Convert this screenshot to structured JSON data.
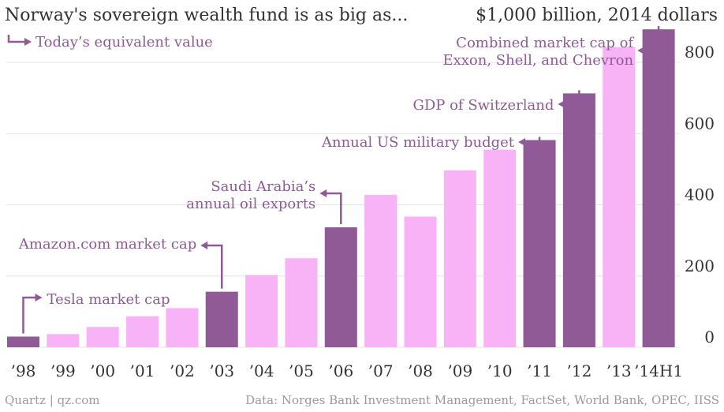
{
  "colors": {
    "highlight": "#8f5a96",
    "normal": "#f7b3f5",
    "annotation": "#8f5a96",
    "grid": "#e3e3e3",
    "axis_text": "#333333",
    "title_text": "#333333",
    "source_text": "#9a9a9a"
  },
  "chart_data": {
    "type": "bar",
    "title": "Norway's sovereign wealth fund is as big as...",
    "unit_label": "$1,000 billion, 2014 dollars",
    "legend_label": "Today’s equivalent value",
    "categories": [
      "’98",
      "’99",
      "’00",
      "’01",
      "’02",
      "’03",
      "’04",
      "’05",
      "’06",
      "’07",
      "’08",
      "’09",
      "’10",
      "’11",
      "’12",
      "’13",
      "’14H1"
    ],
    "values": [
      30,
      37,
      57,
      87,
      110,
      156,
      203,
      250,
      337,
      428,
      367,
      497,
      555,
      582,
      713,
      843,
      893
    ],
    "highlighted": [
      true,
      false,
      false,
      false,
      false,
      true,
      false,
      false,
      true,
      false,
      false,
      false,
      false,
      true,
      true,
      false,
      true
    ],
    "ylim": [
      0,
      900
    ],
    "yticks": [
      0,
      200,
      400,
      600,
      800
    ],
    "y_axis_side": "right",
    "grid": true,
    "annotations": [
      {
        "bar_index": 0,
        "lines": [
          "Tesla market cap"
        ]
      },
      {
        "bar_index": 5,
        "lines": [
          "Amazon.com market cap"
        ]
      },
      {
        "bar_index": 8,
        "lines": [
          "Saudi Arabia’s",
          "annual oil exports"
        ]
      },
      {
        "bar_index": 13,
        "lines": [
          "Annual US military budget"
        ]
      },
      {
        "bar_index": 14,
        "lines": [
          "GDP of Switzerland"
        ]
      },
      {
        "bar_index": 16,
        "lines": [
          "Combined market cap of",
          "Exxon, Shell, and Chevron"
        ]
      }
    ]
  },
  "footer": {
    "credit": "Quartz | qz.com",
    "source": "Data: Norges Bank Investment Management, FactSet, World Bank, OPEC, IISS"
  }
}
